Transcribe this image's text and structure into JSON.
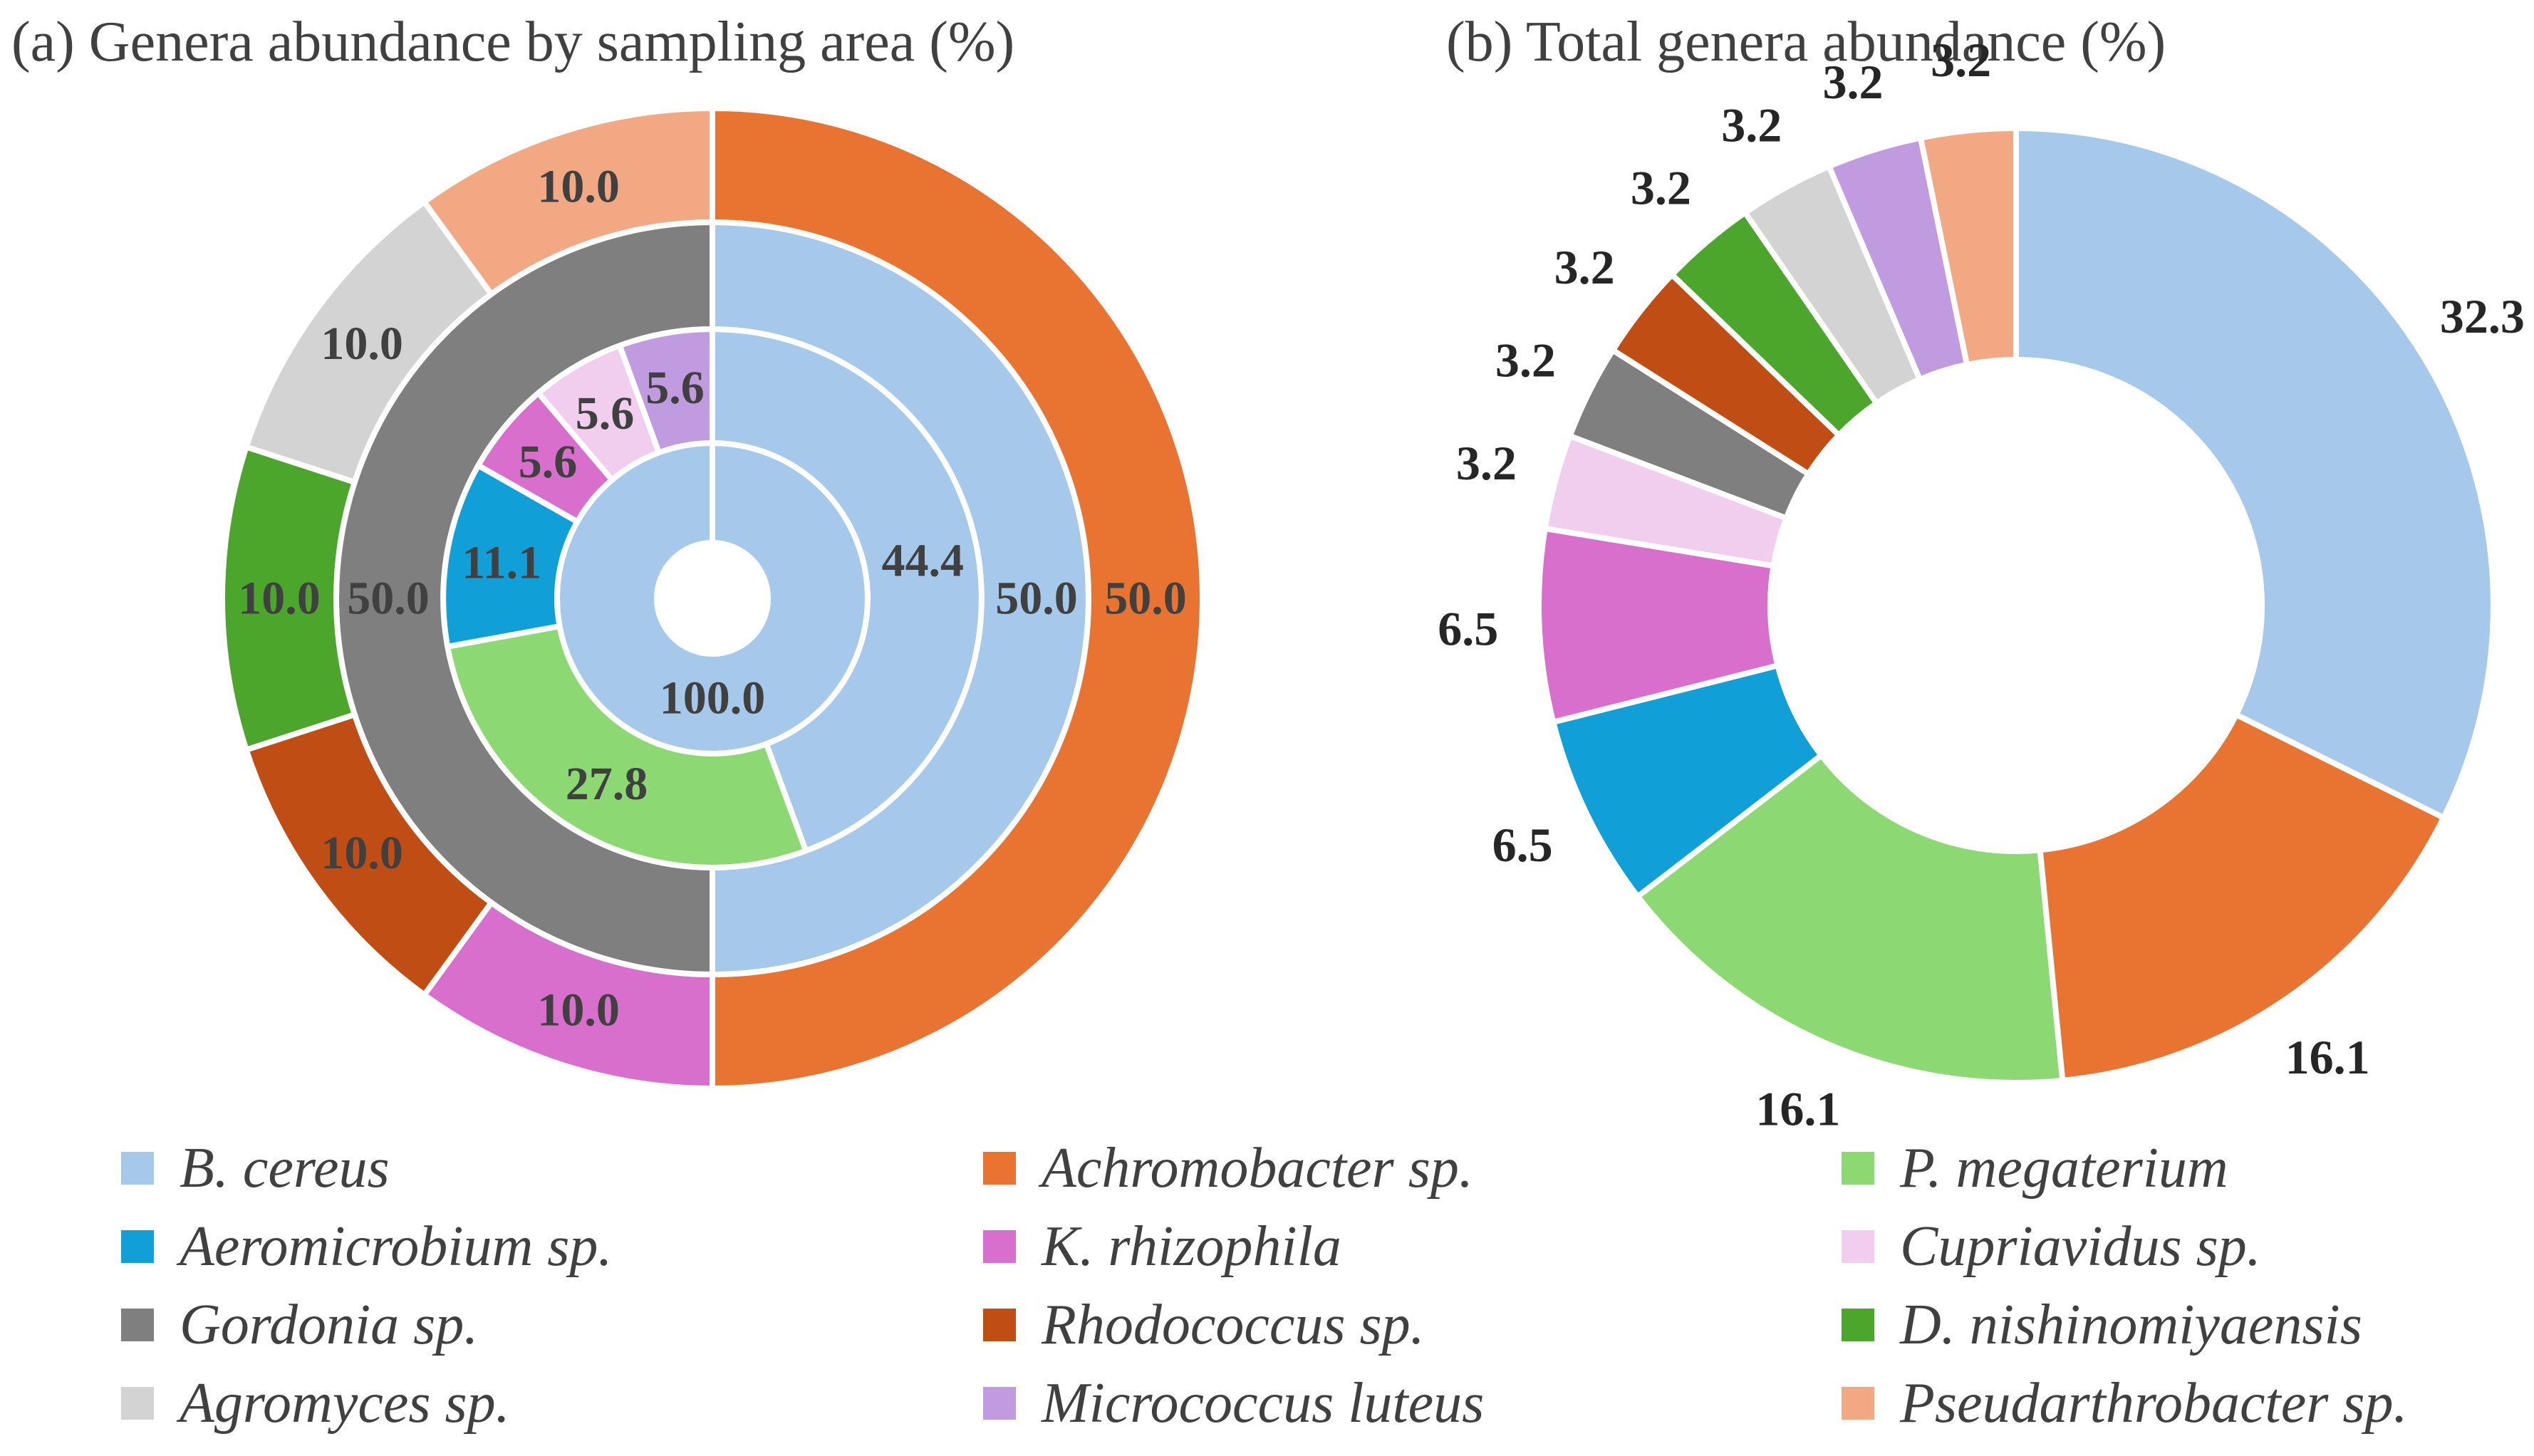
{
  "chart_data": [
    {
      "type": "pie",
      "variant": "nested-donut",
      "title": "(a) Genera abundance by sampling area (%)",
      "rings": [
        {
          "name": "inner",
          "slices": [
            {
              "label": "B. cereus",
              "value": 100.0,
              "color": "#A6C8EB"
            }
          ]
        },
        {
          "name": "middle",
          "slices": [
            {
              "label": "B. cereus",
              "value": 44.4,
              "color": "#A6C8EB"
            },
            {
              "label": "P. megaterium",
              "value": 27.8,
              "color": "#8CD873"
            },
            {
              "label": "Aeromicrobium sp.",
              "value": 11.1,
              "color": "#119FD8"
            },
            {
              "label": "K. rhizophila",
              "value": 5.6,
              "color": "#D86FCD"
            },
            {
              "label": "Cupriavidus sp.",
              "value": 5.6,
              "color": "#F2CEEE"
            },
            {
              "label": "Micrococcus luteus",
              "value": 5.6,
              "color": "#C09BE0"
            }
          ]
        },
        {
          "name": "outer-middle",
          "slices": [
            {
              "label": "B. cereus",
              "value": 50.0,
              "color": "#A6C8EB"
            },
            {
              "label": "Gordonia sp.",
              "value": 50.0,
              "color": "#7F7F7F"
            }
          ]
        },
        {
          "name": "outer",
          "slices": [
            {
              "label": "Achromobacter sp.",
              "value": 50.0,
              "color": "#E97431"
            },
            {
              "label": "K. rhizophila",
              "value": 10.0,
              "color": "#D86FCD"
            },
            {
              "label": "Rhodococcus sp.",
              "value": 10.0,
              "color": "#C04D14"
            },
            {
              "label": "D. nishinomiyaensis",
              "value": 10.0,
              "color": "#4CA62B"
            },
            {
              "label": "Agromyces sp.",
              "value": 10.0,
              "color": "#D3D3D3"
            },
            {
              "label": "Pseudarthrobacter sp.",
              "value": 10.0,
              "color": "#F2A882"
            }
          ]
        }
      ]
    },
    {
      "type": "pie",
      "variant": "donut",
      "title": "(b) Total genera abundance (%)",
      "slices": [
        {
          "label": "B. cereus",
          "value": 32.3,
          "color": "#A6C8EB"
        },
        {
          "label": "Achromobacter sp.",
          "value": 16.1,
          "color": "#E97431"
        },
        {
          "label": "P. megaterium",
          "value": 16.1,
          "color": "#8CD873"
        },
        {
          "label": "Aeromicrobium sp.",
          "value": 6.5,
          "color": "#119FD8"
        },
        {
          "label": "K. rhizophila",
          "value": 6.5,
          "color": "#D86FCD"
        },
        {
          "label": "Cupriavidus sp.",
          "value": 3.2,
          "color": "#F2CEEE"
        },
        {
          "label": "Gordonia sp.",
          "value": 3.2,
          "color": "#7F7F7F"
        },
        {
          "label": "Rhodococcus sp.",
          "value": 3.2,
          "color": "#C04D14"
        },
        {
          "label": "D. nishinomiyaensis",
          "value": 3.2,
          "color": "#4CA62B"
        },
        {
          "label": "Agromyces sp.",
          "value": 3.2,
          "color": "#D3D3D3"
        },
        {
          "label": "Micrococcus luteus",
          "value": 3.2,
          "color": "#C09BE0"
        },
        {
          "label": "Pseudarthrobacter sp.",
          "value": 3.2,
          "color": "#F2A882"
        }
      ]
    }
  ],
  "legend": [
    {
      "label": "B. cereus",
      "color": "#A6C8EB"
    },
    {
      "label": "Achromobacter sp.",
      "color": "#E97431"
    },
    {
      "label": "P. megaterium",
      "color": "#8CD873"
    },
    {
      "label": "Aeromicrobium sp.",
      "color": "#119FD8"
    },
    {
      "label": "K. rhizophila",
      "color": "#D86FCD"
    },
    {
      "label": "Cupriavidus sp.",
      "color": "#F2CEEE"
    },
    {
      "label": "Gordonia sp.",
      "color": "#7F7F7F"
    },
    {
      "label": "Rhodococcus sp.",
      "color": "#C04D14"
    },
    {
      "label": "D. nishinomiyaensis",
      "color": "#4CA62B"
    },
    {
      "label": "Agromyces sp.",
      "color": "#D3D3D3"
    },
    {
      "label": "Micrococcus luteus",
      "color": "#C09BE0"
    },
    {
      "label": "Pseudarthrobacter sp.",
      "color": "#F2A882"
    }
  ]
}
